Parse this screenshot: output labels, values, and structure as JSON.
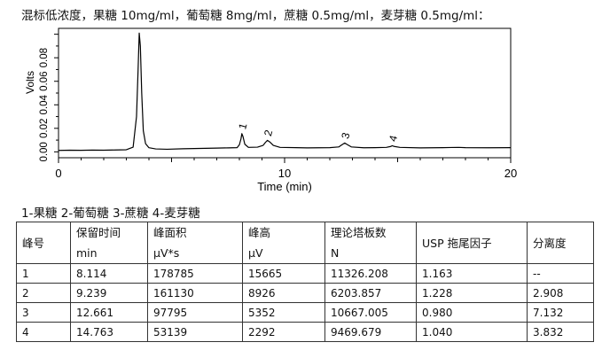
{
  "heading": "混标低浓度，果糖 10mg/ml，葡萄糖 8mg/ml，蔗糖 0.5mg/ml，麦芽糖 0.5mg/ml：",
  "peak_legend": "1-果糖  2-葡萄糖  3-蔗糖  4-麦芽糖",
  "chart_data": {
    "type": "line",
    "xlabel": "Time (min)",
    "ylabel": "Volts",
    "xlim": [
      0,
      20
    ],
    "ylim": [
      -0.005,
      0.105
    ],
    "x_ticks": [
      "0",
      "10",
      "20"
    ],
    "y_ticks": [
      "0.00",
      "0.02",
      "0.04",
      "0.06",
      "0.08"
    ],
    "grid": false,
    "series": [
      {
        "points": [
          [
            0,
            0.0012
          ],
          [
            0.5,
            0.0014
          ],
          [
            1,
            0.0013
          ],
          [
            1.5,
            0.0015
          ],
          [
            2,
            0.0014
          ],
          [
            2.5,
            0.0016
          ],
          [
            3,
            0.0018
          ],
          [
            3.3,
            0.004
          ],
          [
            3.45,
            0.03
          ],
          [
            3.52,
            0.07
          ],
          [
            3.57,
            0.101
          ],
          [
            3.62,
            0.09
          ],
          [
            3.68,
            0.05
          ],
          [
            3.75,
            0.018
          ],
          [
            3.85,
            0.007
          ],
          [
            4,
            0.0035
          ],
          [
            4.3,
            0.0025
          ],
          [
            4.8,
            0.0022
          ],
          [
            5.5,
            0.0026
          ],
          [
            6,
            0.0028
          ],
          [
            6.5,
            0.003
          ],
          [
            7,
            0.0032
          ],
          [
            7.5,
            0.0034
          ],
          [
            7.9,
            0.0036
          ],
          [
            8.0,
            0.006
          ],
          [
            8.07,
            0.011
          ],
          [
            8.11,
            0.0155
          ],
          [
            8.16,
            0.013
          ],
          [
            8.24,
            0.0065
          ],
          [
            8.4,
            0.0038
          ],
          [
            8.8,
            0.004
          ],
          [
            9.05,
            0.0055
          ],
          [
            9.15,
            0.008
          ],
          [
            9.24,
            0.0098
          ],
          [
            9.34,
            0.0085
          ],
          [
            9.5,
            0.0055
          ],
          [
            9.8,
            0.0038
          ],
          [
            10.5,
            0.0036
          ],
          [
            11,
            0.0034
          ],
          [
            11.5,
            0.0035
          ],
          [
            12,
            0.0036
          ],
          [
            12.4,
            0.0042
          ],
          [
            12.55,
            0.0062
          ],
          [
            12.66,
            0.0075
          ],
          [
            12.77,
            0.0062
          ],
          [
            12.95,
            0.0042
          ],
          [
            13.5,
            0.0035
          ],
          [
            14,
            0.0036
          ],
          [
            14.5,
            0.0038
          ],
          [
            14.7,
            0.0046
          ],
          [
            14.76,
            0.0052
          ],
          [
            14.85,
            0.0046
          ],
          [
            15.1,
            0.0038
          ],
          [
            16,
            0.0034
          ],
          [
            17,
            0.0036
          ],
          [
            17.7,
            0.0038
          ],
          [
            18,
            0.0036
          ],
          [
            19,
            0.0035
          ],
          [
            20,
            0.0036
          ]
        ]
      }
    ],
    "annotations": [
      {
        "text": "1",
        "x": 8.114,
        "y": 0.0155
      },
      {
        "text": "2",
        "x": 9.239,
        "y": 0.0098
      },
      {
        "text": "3",
        "x": 12.661,
        "y": 0.0075
      },
      {
        "text": "4",
        "x": 14.763,
        "y": 0.0052
      }
    ]
  },
  "table": {
    "headers": [
      [
        "峰号",
        ""
      ],
      [
        "保留时间",
        "min"
      ],
      [
        "峰面积",
        "μV*s"
      ],
      [
        "峰高",
        "μV"
      ],
      [
        "理论塔板数",
        "N"
      ],
      [
        "USP 拖尾因子",
        ""
      ],
      [
        "分离度",
        ""
      ]
    ],
    "rows": [
      [
        "1",
        "8.114",
        "178785",
        "15665",
        "11326.208",
        "1.163",
        "--"
      ],
      [
        "2",
        "9.239",
        "161130",
        "8926",
        "6203.857",
        "1.228",
        "2.908"
      ],
      [
        "3",
        "12.661",
        "97795",
        "5352",
        "10667.005",
        "0.980",
        "7.132"
      ],
      [
        "4",
        "14.763",
        "53139",
        "2292",
        "9469.679",
        "1.040",
        "3.832"
      ]
    ]
  }
}
